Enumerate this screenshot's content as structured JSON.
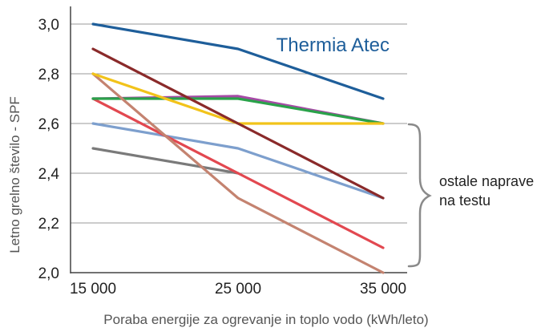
{
  "chart_data": {
    "type": "line",
    "title": "",
    "xlabel": "Poraba energije za ogrevanje in toplo vodo (kWh/leto)",
    "ylabel": "Letno grelno število - SPF",
    "x": [
      15000,
      25000,
      35000
    ],
    "x_tick_labels": [
      "15 000",
      "25 000",
      "35 000"
    ],
    "ylim": [
      2.0,
      3.0
    ],
    "y_ticks": [
      2.0,
      2.2,
      2.4,
      2.6,
      2.8,
      3.0
    ],
    "y_tick_labels": [
      "2,0",
      "2,2",
      "2,4",
      "2,6",
      "2,8",
      "3,0"
    ],
    "grid": "horizontal",
    "series": [
      {
        "name": "Thermia Atec",
        "color": "#1e5e9a",
        "values": [
          3.0,
          2.9,
          2.7
        ]
      },
      {
        "color": "#8a2a2a",
        "values": [
          2.9,
          2.6,
          2.3
        ]
      },
      {
        "color": "#f2c31a",
        "values": [
          2.8,
          2.6,
          2.6
        ]
      },
      {
        "color": "#c48370",
        "values": [
          2.8,
          2.3,
          2.0
        ]
      },
      {
        "color": "#2aa24a",
        "values": [
          2.7,
          2.7,
          2.6
        ]
      },
      {
        "color": "#a64aa6",
        "values": [
          2.7,
          2.71,
          2.6
        ]
      },
      {
        "color": "#e24850",
        "values": [
          2.7,
          2.4,
          2.1
        ]
      },
      {
        "color": "#7d9fcd",
        "values": [
          2.6,
          2.5,
          2.3
        ]
      },
      {
        "color": "#7a7a7a",
        "values": [
          2.5,
          2.4,
          null
        ]
      }
    ],
    "annotations": {
      "highlight_label": "Thermia Atec",
      "bracket_label_lines": [
        "ostale naprave",
        "na testu"
      ],
      "bracket_range": [
        2.0,
        2.6
      ]
    }
  }
}
